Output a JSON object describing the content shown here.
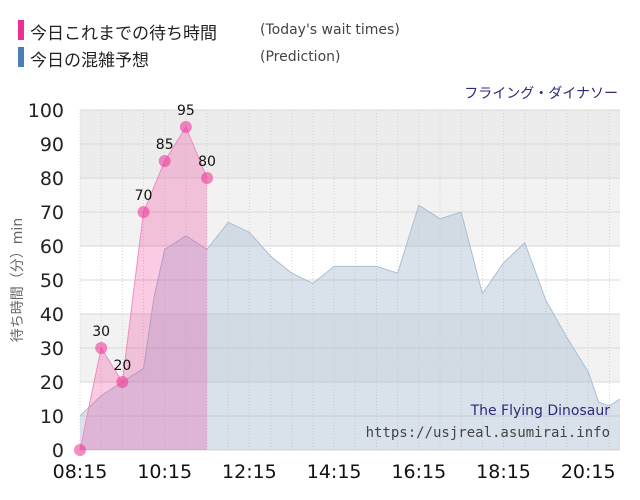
{
  "legend": {
    "today": {
      "label": "今日これまでの待ち時間",
      "note": "(Today's wait times)",
      "color": "#ef2e93"
    },
    "prediction": {
      "label": "今日の混雑予想",
      "note": "(Prediction)",
      "color": "#4a7fb0"
    }
  },
  "ride_name": "フライング・ダイナソー",
  "watermark": {
    "line1": "The Flying Dinosaur",
    "line2": "https://usjreal.asumirai.info"
  },
  "chart_data": {
    "type": "area",
    "ylabel": "待ち時間（分）min",
    "ylim": [
      0,
      100
    ],
    "yticks": [
      0,
      10,
      20,
      30,
      40,
      50,
      60,
      70,
      80,
      90,
      100
    ],
    "xlim": [
      "08:15",
      "21:00"
    ],
    "xticks": [
      "08:15",
      "10:15",
      "12:15",
      "14:15",
      "16:15",
      "18:15",
      "20:15"
    ],
    "grid": true,
    "series": [
      {
        "name": "今日これまでの待ち時間",
        "color": "#ef2e93",
        "labeled": true,
        "points": [
          {
            "x": "08:15",
            "y": 0
          },
          {
            "x": "08:45",
            "y": 30
          },
          {
            "x": "09:15",
            "y": 20
          },
          {
            "x": "09:45",
            "y": 70
          },
          {
            "x": "10:15",
            "y": 85
          },
          {
            "x": "10:45",
            "y": 95
          },
          {
            "x": "11:15",
            "y": 80
          }
        ]
      },
      {
        "name": "今日の混雑予想",
        "color": "#aabfd3",
        "labeled": false,
        "points": [
          {
            "x": "08:15",
            "y": 10
          },
          {
            "x": "08:45",
            "y": 16
          },
          {
            "x": "09:15",
            "y": 20
          },
          {
            "x": "09:45",
            "y": 24
          },
          {
            "x": "10:00",
            "y": 45
          },
          {
            "x": "10:15",
            "y": 59
          },
          {
            "x": "10:45",
            "y": 63
          },
          {
            "x": "11:15",
            "y": 59
          },
          {
            "x": "11:45",
            "y": 67
          },
          {
            "x": "12:15",
            "y": 64
          },
          {
            "x": "12:45",
            "y": 57
          },
          {
            "x": "13:15",
            "y": 52
          },
          {
            "x": "13:45",
            "y": 49
          },
          {
            "x": "14:15",
            "y": 54
          },
          {
            "x": "14:45",
            "y": 54
          },
          {
            "x": "15:15",
            "y": 54
          },
          {
            "x": "15:45",
            "y": 52
          },
          {
            "x": "16:15",
            "y": 72
          },
          {
            "x": "16:45",
            "y": 68
          },
          {
            "x": "17:15",
            "y": 70
          },
          {
            "x": "17:45",
            "y": 46
          },
          {
            "x": "18:15",
            "y": 55
          },
          {
            "x": "18:45",
            "y": 61
          },
          {
            "x": "19:15",
            "y": 44
          },
          {
            "x": "19:45",
            "y": 33
          },
          {
            "x": "20:15",
            "y": 23
          },
          {
            "x": "20:30",
            "y": 14
          },
          {
            "x": "20:45",
            "y": 13
          },
          {
            "x": "21:00",
            "y": 15
          }
        ]
      }
    ]
  }
}
